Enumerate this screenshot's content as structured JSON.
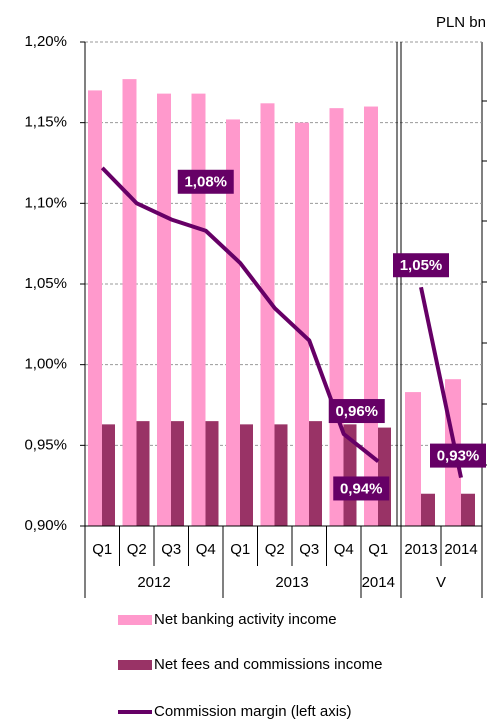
{
  "chart_data": {
    "type": "bar",
    "y2label": "PLN bn",
    "categories": [
      "Q1",
      "Q2",
      "Q3",
      "Q4",
      "Q1",
      "Q2",
      "Q3",
      "Q4",
      "Q1",
      "2013",
      "2014"
    ],
    "category_groups": [
      "2012",
      "2012",
      "2012",
      "2012",
      "2013",
      "2013",
      "2013",
      "2013",
      "2014",
      "V",
      "V"
    ],
    "ylim": [
      0.9,
      1.2
    ],
    "yticks": [
      {
        "value": 0.9,
        "label": "0,90%"
      },
      {
        "value": 0.95,
        "label": "0,95%"
      },
      {
        "value": 1.0,
        "label": "1,00%"
      },
      {
        "value": 1.05,
        "label": "1,05%"
      },
      {
        "value": 1.1,
        "label": "1,10%"
      },
      {
        "value": 1.15,
        "label": "1,15%"
      },
      {
        "value": 1.2,
        "label": "1,20%"
      }
    ],
    "grid": true,
    "series": [
      {
        "name": "Net banking activity income",
        "type": "bar",
        "color": "#ff99cc",
        "values": [
          1.17,
          1.177,
          1.168,
          1.168,
          1.152,
          1.162,
          1.15,
          1.159,
          1.16,
          0.983,
          0.991
        ]
      },
      {
        "name": "Net fees and commissions income",
        "type": "bar",
        "color": "#993366",
        "values": [
          0.963,
          0.965,
          0.965,
          0.965,
          0.963,
          0.963,
          0.965,
          0.963,
          0.961,
          0.92,
          0.92
        ]
      },
      {
        "name": "Commission margin (left axis)",
        "type": "line",
        "color": "#660066",
        "values": [
          1.122,
          1.1,
          1.09,
          1.083,
          1.063,
          1.035,
          1.015,
          0.957,
          0.94,
          1.048,
          0.93
        ],
        "value_labels": [
          null,
          null,
          null,
          "1,08%",
          null,
          null,
          null,
          "0,96%",
          "0,94%",
          "1,05%",
          "0,93%"
        ]
      }
    ]
  }
}
